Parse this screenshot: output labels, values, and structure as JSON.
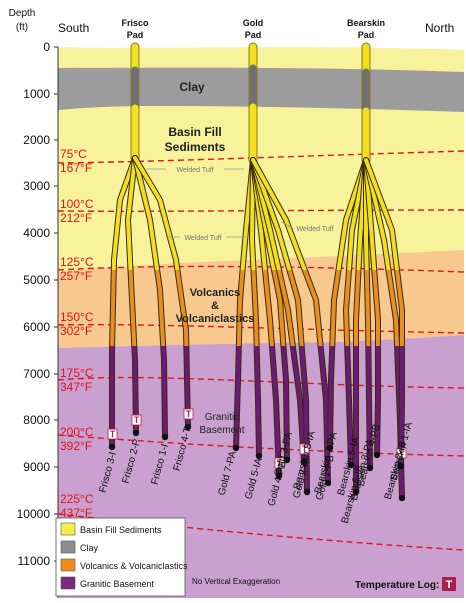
{
  "axis": {
    "title_line1": "Depth",
    "title_line2": "(ft)",
    "left_end": "South",
    "right_end": "North",
    "ticks": [
      "0",
      "1000",
      "2000",
      "3000",
      "4000",
      "5000",
      "6000",
      "7000",
      "8000",
      "9000",
      "10000",
      "11000"
    ]
  },
  "pads": [
    {
      "line1": "Frisco",
      "line2": "Pad"
    },
    {
      "line1": "Gold",
      "line2": "Pad"
    },
    {
      "line1": "Bearskin",
      "line2": "Pad"
    }
  ],
  "units": {
    "clay": "Clay",
    "basin_fill_1": "Basin Fill",
    "basin_fill_2": "Sediments",
    "welded_tuff": "Welded Tuff",
    "volcanics_1": "Volcanics",
    "volcanics_2": "&",
    "volcanics_3": "Volcaniclastics",
    "granitic_1": "Granitic",
    "granitic_2": "Basement"
  },
  "isotherms": [
    {
      "c": "75°C",
      "f": "167°F"
    },
    {
      "c": "100°C",
      "f": "212°F"
    },
    {
      "c": "125°C",
      "f": "257°F"
    },
    {
      "c": "150°C",
      "f": "302°F"
    },
    {
      "c": "175°C",
      "f": "347°F"
    },
    {
      "c": "200°C",
      "f": "392°F"
    },
    {
      "c": "225°C",
      "f": "437°F"
    }
  ],
  "wells": [
    "Frisco 3-I",
    "Frisco 2-P",
    "Frisco 1-I",
    "Frisco 4-T",
    "Gold 7-PA",
    "Gold 5-IA",
    "Gold 4-PB",
    "Gold 3-PA",
    "Gold 2-IB",
    "Bearskin 8-IA",
    "Gold 1-PB",
    "Bearskin 7-PA",
    "Bearskin 5-IA",
    "Bearskin 6-IB",
    "Bearskin 3-PA",
    "Bearskin 4-PB",
    "Bearskin 2-IB",
    "Bearskin 1-IA"
  ],
  "temp_log_marker": "T",
  "legend": [
    {
      "label": "Basin Fill Sediments",
      "color": "#f5ee4a"
    },
    {
      "label": "Clay",
      "color": "#8c8c8c"
    },
    {
      "label": "Volcanics & Volcaniclastics",
      "color": "#f08a1c"
    },
    {
      "label": "Granitic Basement",
      "color": "#7a2a7e"
    }
  ],
  "footer": {
    "exaggeration": "No Vertical Exaggeration",
    "temperature_log": "Temperature Log:"
  },
  "colors": {
    "basin_fill": "#f8f29a",
    "clay": "#9c9c9c",
    "volcanics": "#f8c98e",
    "granitic": "#c9a0d0",
    "isotherm": "#e0141a",
    "well_yellow": "#f0e020",
    "well_orange": "#e8901e",
    "well_purple": "#6a1c72",
    "temp_log": "#a8204a"
  }
}
